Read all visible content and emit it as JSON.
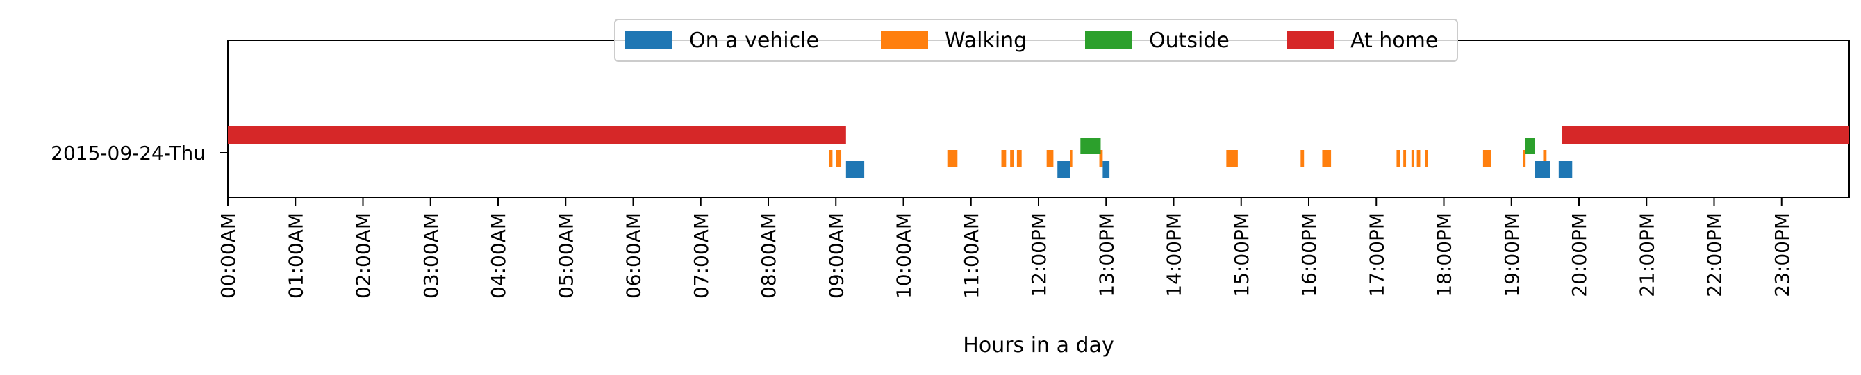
{
  "chart_data": {
    "type": "timeline",
    "xlabel": "Hours in a day",
    "xlim": [
      0,
      24
    ],
    "ytick_label": "2015-09-24-Thu",
    "xtick_labels": [
      "00:00AM",
      "01:00AM",
      "02:00AM",
      "03:00AM",
      "04:00AM",
      "05:00AM",
      "06:00AM",
      "07:00AM",
      "08:00AM",
      "09:00AM",
      "10:00AM",
      "11:00AM",
      "12:00PM",
      "13:00PM",
      "14:00PM",
      "15:00PM",
      "16:00PM",
      "17:00PM",
      "18:00PM",
      "19:00PM",
      "20:00PM",
      "21:00PM",
      "22:00PM",
      "23:00PM"
    ],
    "legend_placement": "top-center",
    "series": [
      {
        "name": "On a vehicle",
        "color": "#1f77b4",
        "row": 3,
        "intervals": [
          [
            9.15,
            9.42
          ],
          [
            12.28,
            12.47
          ],
          [
            12.95,
            13.05
          ],
          [
            19.35,
            19.57
          ],
          [
            19.7,
            19.9
          ]
        ]
      },
      {
        "name": "Walking",
        "color": "#ff7f0e",
        "row": 2,
        "intervals": [
          [
            8.9,
            8.95
          ],
          [
            9.0,
            9.08
          ],
          [
            10.65,
            10.8
          ],
          [
            11.45,
            11.52
          ],
          [
            11.58,
            11.63
          ],
          [
            11.68,
            11.75
          ],
          [
            12.12,
            12.22
          ],
          [
            12.47,
            12.5
          ],
          [
            12.9,
            12.95
          ],
          [
            14.78,
            14.95
          ],
          [
            15.88,
            15.93
          ],
          [
            16.2,
            16.33
          ],
          [
            17.3,
            17.35
          ],
          [
            17.4,
            17.44
          ],
          [
            17.52,
            17.56
          ],
          [
            17.6,
            17.65
          ],
          [
            17.72,
            17.76
          ],
          [
            18.58,
            18.7
          ],
          [
            19.17,
            19.21
          ],
          [
            19.47,
            19.52
          ]
        ]
      },
      {
        "name": "Outside",
        "color": "#2ca02c",
        "row": 1,
        "intervals": [
          [
            12.62,
            12.92
          ],
          [
            19.2,
            19.35
          ]
        ]
      },
      {
        "name": "At home",
        "color": "#d62728",
        "row": 0,
        "intervals": [
          [
            0,
            9.15
          ],
          [
            19.75,
            24
          ]
        ]
      }
    ]
  }
}
